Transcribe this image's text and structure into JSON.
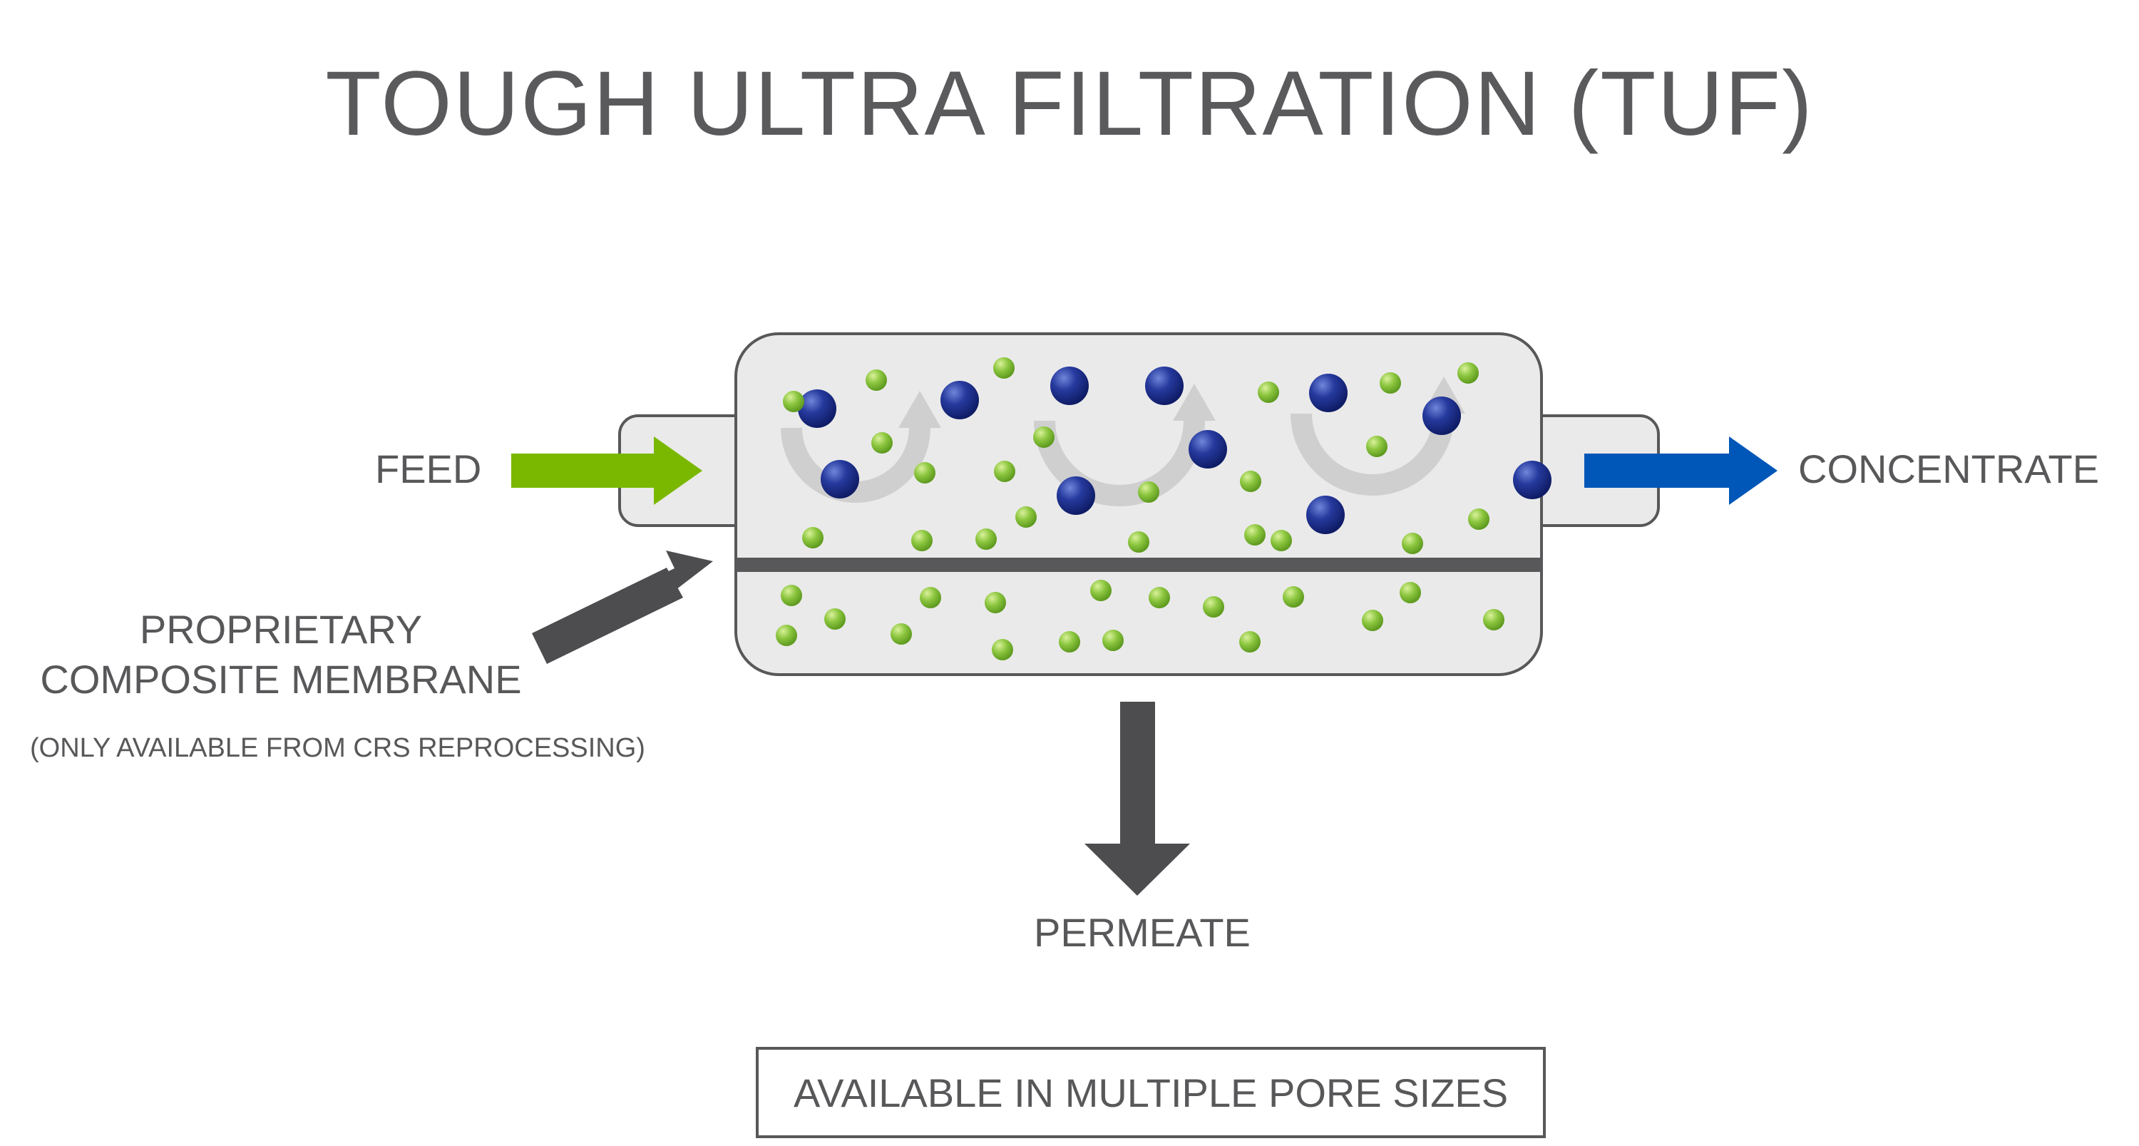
{
  "title": "TOUGH ULTRA FILTRATION (TUF)",
  "labels": {
    "feed": "FEED",
    "concentrate": "CONCENTRATE",
    "membrane_line1": "PROPRIETARY",
    "membrane_line2": "COMPOSITE MEMBRANE",
    "membrane_note": "(ONLY AVAILABLE FROM CRS REPROCESSING)",
    "permeate": "PERMEATE",
    "pore_sizes": "AVAILABLE IN MULTIPLE PORE SIZES"
  },
  "colors": {
    "text": "#58585a",
    "housing_fill": "#eaeaea",
    "housing_stroke": "#58585a",
    "feed_arrow": "#7ab800",
    "concentrate_arrow": "#0057b8",
    "dark_arrow": "#4d4d50",
    "membrane": "#58585a",
    "large_particle": "#1d2f8f",
    "small_particle": "#8cc63f",
    "flow_arrow": "#cfcfcf"
  }
}
